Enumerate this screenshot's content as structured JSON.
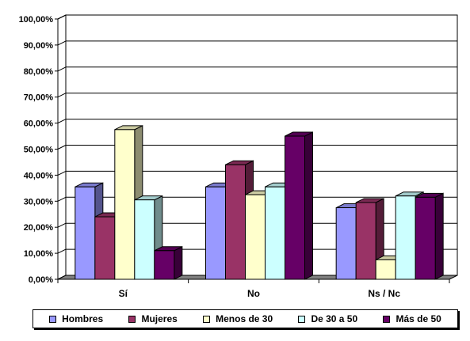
{
  "chart_data": {
    "type": "bar",
    "categories": [
      "Sí",
      "No",
      "Ns / Nc"
    ],
    "series": [
      {
        "name": "Hombres",
        "color": "#9999ff",
        "values": [
          35.5,
          35.5,
          27.5
        ]
      },
      {
        "name": "Mujeres",
        "color": "#993366",
        "values": [
          24.0,
          44.0,
          29.5
        ]
      },
      {
        "name": "Menos de 30",
        "color": "#ffffcc",
        "values": [
          57.5,
          32.5,
          7.5
        ]
      },
      {
        "name": "De 30 a 50",
        "color": "#ccffff",
        "values": [
          30.5,
          35.5,
          32.0
        ]
      },
      {
        "name": "Más de 50",
        "color": "#660066",
        "values": [
          11.0,
          55.0,
          31.5
        ]
      }
    ],
    "ylim": [
      0,
      100
    ],
    "yticks": [
      "0,00%",
      "10,00%",
      "20,00%",
      "30,00%",
      "40,00%",
      "50,00%",
      "60,00%",
      "70,00%",
      "80,00%",
      "90,00%",
      "100,00%"
    ],
    "grid": true,
    "three_d": true,
    "legend_position": "bottom"
  }
}
